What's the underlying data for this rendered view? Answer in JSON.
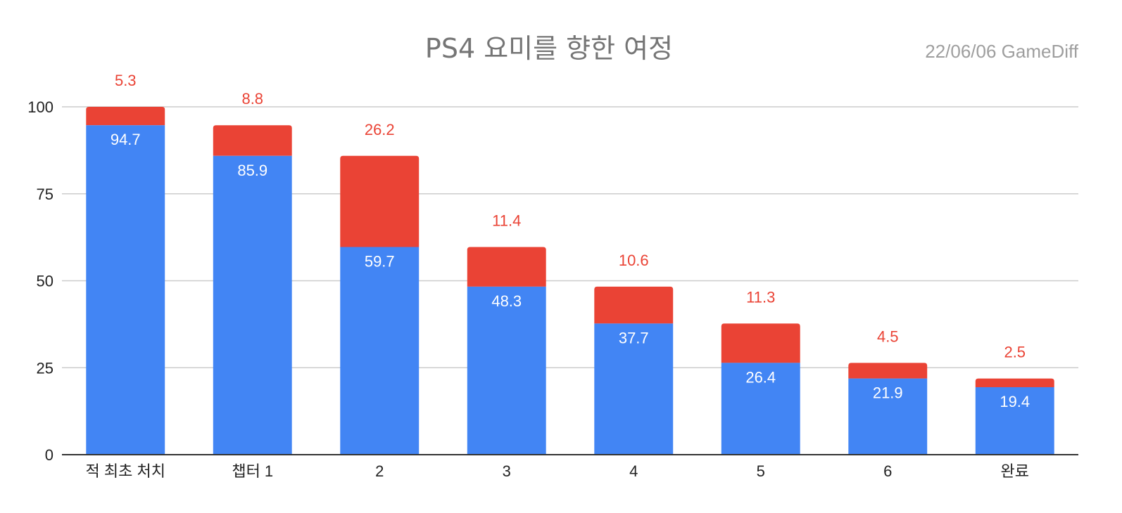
{
  "chart_data": {
    "type": "bar",
    "stacked": true,
    "title": "PS4 요미를 향한 여정",
    "source": "22/06/06  GameDiff",
    "categories": [
      "적 최초 처치",
      "챕터 1",
      "2",
      "3",
      "4",
      "5",
      "6",
      "완료"
    ],
    "series": [
      {
        "values": [
          94.7,
          85.9,
          59.7,
          48.3,
          37.7,
          26.4,
          21.9,
          19.4
        ],
        "color": "#4285f4"
      },
      {
        "values": [
          5.3,
          8.8,
          26.2,
          11.4,
          10.6,
          11.3,
          4.5,
          2.5
        ],
        "color": "#ea4335"
      }
    ],
    "ylim": [
      0,
      100
    ],
    "yticks": [
      0,
      25,
      50,
      75,
      100
    ],
    "grid": true,
    "legend": "none"
  }
}
